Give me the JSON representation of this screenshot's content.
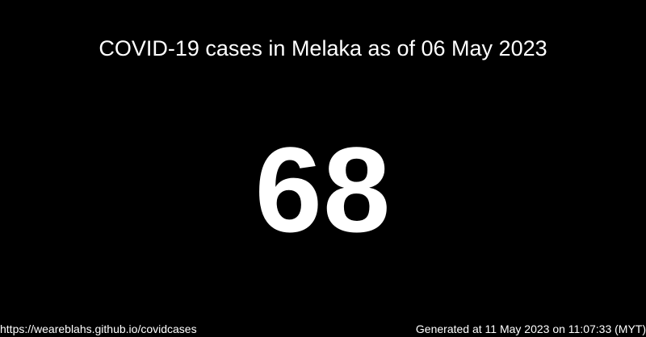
{
  "card": {
    "title": "COVID-19 cases in Melaka as of 06 May 2023",
    "case_count": "68",
    "footer": {
      "link_text": "https://weareblahs.github.io/covidcases",
      "generated_text": "Generated at 11 May 2023 on 11:07:33 (MYT)"
    }
  },
  "colors": {
    "background": "#000000",
    "text": "#ffffff"
  }
}
